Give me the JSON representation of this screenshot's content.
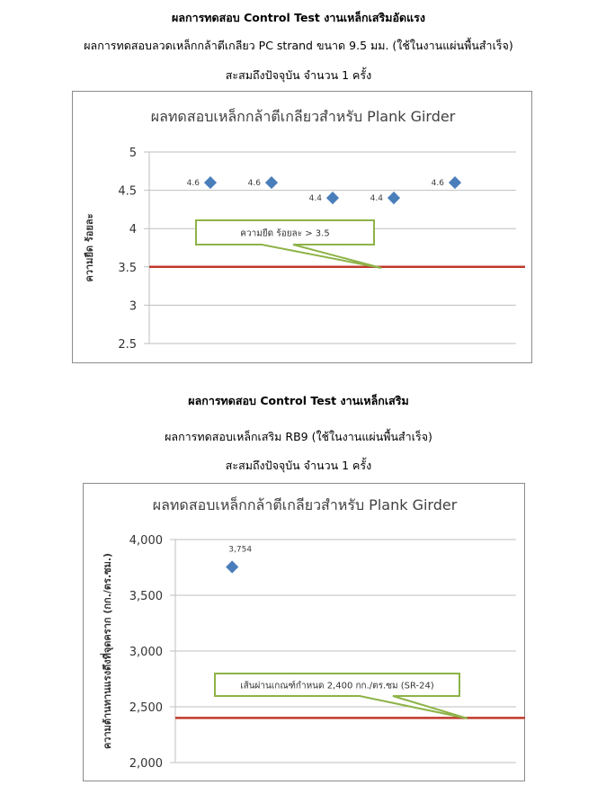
{
  "section1": {
    "heading": "ผลการทดสอบ Control Test งานเหล็กเสริมอัดแรง",
    "subheading": "ผลการทดสอบลวดเหล็กกล้าตีเกลียว PC strand ขนาด 9.5 มม. (ใช้ในงานแผ่นพื้นสำเร็จ)",
    "count_line": "สะสมถึงปัจจุบัน จำนวน 1 ครั้ง"
  },
  "section2": {
    "heading": "ผลการทดสอบ Control Test งานเหล็กเสริม",
    "subheading": "ผลการทดสอบเหล็กเสริม RB9 (ใช้ในงานแผ่นพื้นสำเร็จ)",
    "count_line": "สะสมถึงปัจจุบัน จำนวน 1 ครั้ง"
  },
  "chart_data": [
    {
      "type": "scatter",
      "title": "ผลทดสอบเหล็กกล้าตีเกลียวสำหรับ Plank Girder",
      "xlabel": "",
      "ylabel": "ความยืด  ร้อยละ",
      "ylim": [
        2.5,
        5
      ],
      "yticks": [
        "2.5",
        "3",
        "3.5",
        "4",
        "4.5",
        "5"
      ],
      "grid": true,
      "x": [
        1,
        2,
        3,
        4,
        5
      ],
      "values": [
        4.6,
        4.6,
        4.4,
        4.4,
        4.6
      ],
      "data_labels": [
        "4.6",
        "4.6",
        "4.4",
        "4.4",
        "4.6"
      ],
      "threshold": {
        "value": 3.5,
        "color": "#c0392b",
        "label": "ความยืด  ร้อยละ > 3.5"
      },
      "marker_color": "#4a7ebb",
      "callout_border": "#8db348"
    },
    {
      "type": "scatter",
      "title": "ผลทดสอบเหล็กกล้าตีเกลียวสำหรับ Plank Girder",
      "xlabel": "",
      "ylabel": "ความต้านทานแรงดึงที่จุดคราก  (กก./ตร.ซม.)",
      "ylim": [
        2000,
        4000
      ],
      "yticks": [
        "2,000",
        "2,500",
        "3,000",
        "3,500",
        "4,000"
      ],
      "grid": true,
      "x": [
        1
      ],
      "values": [
        3754
      ],
      "data_labels": [
        "3,754"
      ],
      "threshold": {
        "value": 2400,
        "color": "#c0392b",
        "label": "เส้นผ่านเกณฑ์กำหนด 2,400  กก./ตร.ซม (SR-24)"
      },
      "marker_color": "#4a7ebb",
      "callout_border": "#8db348"
    }
  ]
}
